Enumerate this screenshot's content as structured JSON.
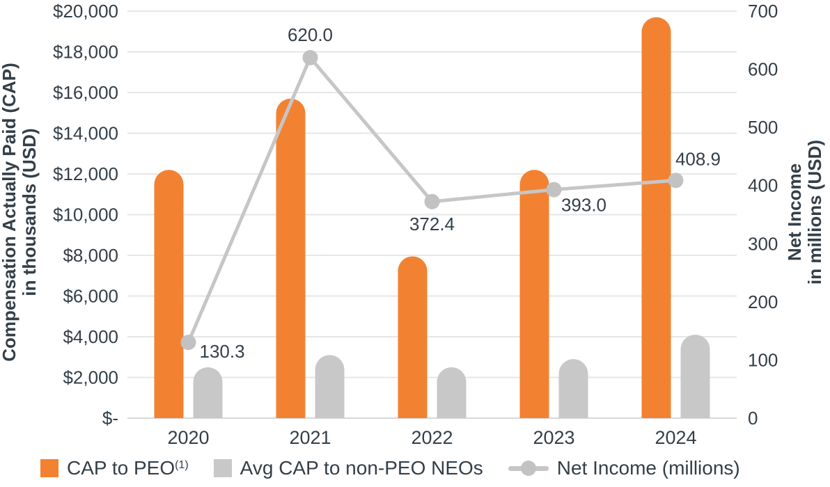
{
  "chart_data": {
    "type": "combo-bar-line",
    "title": "",
    "categories": [
      "2020",
      "2021",
      "2022",
      "2023",
      "2024"
    ],
    "series": [
      {
        "id": "cap-peo",
        "name": "CAP to PEO(1)",
        "chart": "bar",
        "axis": "left",
        "color": "#F28231",
        "values": [
          12200,
          15700,
          7950,
          12200,
          19700
        ]
      },
      {
        "id": "avg-cap-non-peo-neos",
        "name": "Avg CAP to non-PEO NEOs",
        "chart": "bar",
        "axis": "left",
        "color": "#C8C8C9",
        "values": [
          2500,
          3100,
          2500,
          2900,
          4100
        ]
      },
      {
        "id": "net-income",
        "name": "Net Income (millions)",
        "chart": "line",
        "axis": "right",
        "color": "#C6C6C7",
        "marker_color": "#C2C2C3",
        "values": [
          130.3,
          620.0,
          372.4,
          393.0,
          408.9
        ],
        "point_labels": [
          "130.3",
          "620.0",
          "372.4",
          "393.0",
          "408.9"
        ],
        "point_label_offsets": [
          [
            16,
            22
          ],
          [
            0,
            -24
          ],
          [
            0,
            41
          ],
          [
            43,
            31
          ],
          [
            32,
            -22
          ]
        ],
        "point_label_anchors": [
          "start",
          "middle",
          "middle",
          "middle",
          "middle"
        ]
      }
    ],
    "left_axis": {
      "title": [
        "Compensation Actually Paid (CAP)",
        "in thousands (USD)"
      ],
      "min": 0,
      "max": 20000,
      "step": 2000,
      "tick_labels": [
        "$-",
        "$2,000",
        "$4,000",
        "$6,000",
        "$8,000",
        "$10,000",
        "$12,000",
        "$14,000",
        "$16,000",
        "$18,000",
        "$20,000"
      ]
    },
    "right_axis": {
      "title": [
        "Net Income",
        "in millions (USD)"
      ],
      "min": 0,
      "max": 700,
      "step": 100,
      "tick_labels": [
        "0",
        "100",
        "200",
        "300",
        "400",
        "500",
        "600",
        "700"
      ]
    },
    "grid": true,
    "legend_position": "bottom"
  },
  "legend": {
    "items": [
      {
        "id": "cap-peo",
        "label": "CAP to PEO",
        "superscript": "(1)",
        "swatch": "square",
        "color": "#F28231"
      },
      {
        "id": "avg-cap-non-peo-neos",
        "label": "Avg CAP to non-PEO NEOs",
        "superscript": "",
        "swatch": "square",
        "color": "#C8C8C9"
      },
      {
        "id": "net-income",
        "label": "Net Income (millions)",
        "superscript": "",
        "swatch": "line-dot",
        "color": "#C6C6C7",
        "dot_color": "#C2C2C3"
      }
    ]
  },
  "colors": {
    "text": "#333F48",
    "grid": "#E6E6E7",
    "axis_line": "#D8D8D9",
    "background": "#FFFFFF"
  }
}
